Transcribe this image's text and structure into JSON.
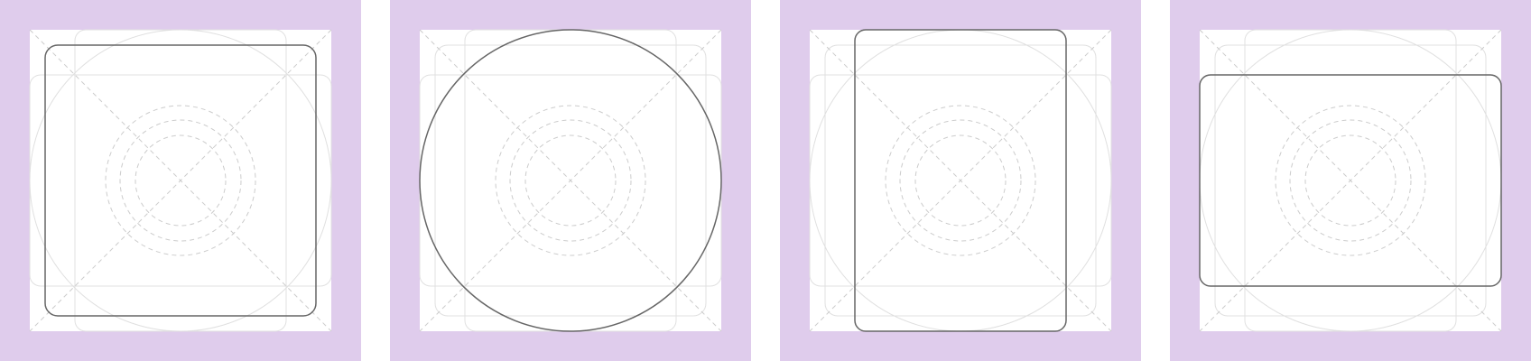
{
  "colors": {
    "padding": "#DFCCEC",
    "canvas": "#FFFFFF",
    "keyline_solid": "#E0E0E0",
    "keyline_dashed": "#CCCCCC",
    "highlight": "#666666"
  },
  "panels": [
    {
      "shape": "square",
      "highlight": "rounded-square"
    },
    {
      "shape": "circle",
      "highlight": "circle"
    },
    {
      "shape": "portrait",
      "highlight": "vertical-rectangle"
    },
    {
      "shape": "landscape",
      "highlight": "horizontal-rectangle"
    }
  ]
}
